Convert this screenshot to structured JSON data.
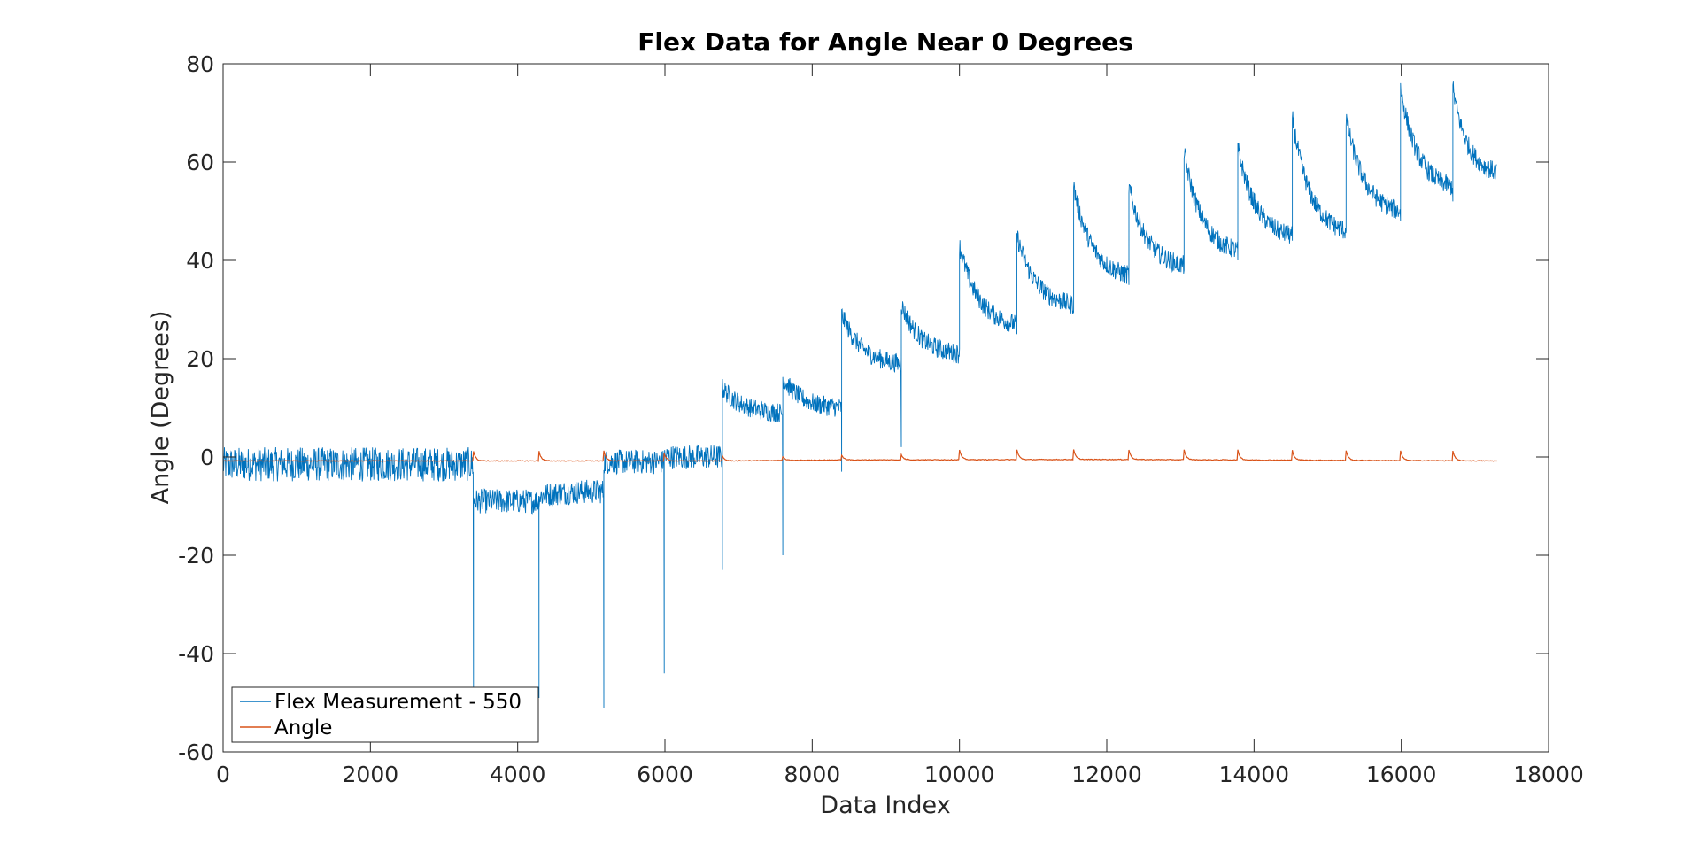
{
  "colors": {
    "flex": "#0072BD",
    "angle": "#D95319",
    "axis": "#262626",
    "background": "#ffffff"
  },
  "chart_data": {
    "type": "line",
    "title": "Flex Data for Angle Near 0 Degrees",
    "xlabel": "Data Index",
    "ylabel": "Angle (Degrees)",
    "xlim": [
      0,
      18000
    ],
    "ylim": [
      -60,
      80
    ],
    "xticks": [
      0,
      2000,
      4000,
      6000,
      8000,
      10000,
      12000,
      14000,
      16000,
      18000
    ],
    "xtick_labels": [
      "0",
      "2000",
      "4000",
      "6000",
      "8000",
      "10000",
      "12000",
      "14000",
      "16000",
      "18000"
    ],
    "yticks": [
      -60,
      -40,
      -20,
      0,
      20,
      40,
      60,
      80
    ],
    "ytick_labels": [
      "-60",
      "-40",
      "-20",
      "0",
      "20",
      "40",
      "60",
      "80"
    ],
    "grid": false,
    "legend_position": "bottom-left",
    "series": [
      {
        "name": "Flex Measurement - 550",
        "color": "#0072BD",
        "segments": [
          {
            "x_start": 0,
            "x_end": 3400,
            "y_start": -1.5,
            "y_end": -1.5,
            "noise": 3.5
          },
          {
            "x_start": 3400,
            "x_end": 4290,
            "y_start": -9,
            "y_end": -9,
            "noise": 2.5,
            "spike": -47
          },
          {
            "x_start": 4290,
            "x_end": 5170,
            "y_start": -8,
            "y_end": -7,
            "noise": 2.5,
            "spike": -49
          },
          {
            "x_start": 5170,
            "x_end": 5990,
            "y_start": -1,
            "y_end": -1,
            "noise": 2.5,
            "spike": -51
          },
          {
            "x_start": 5990,
            "x_end": 6780,
            "y_start": 0,
            "y_end": 0,
            "noise": 2.5,
            "spike": -44
          },
          {
            "x_start": 6780,
            "x_end": 7600,
            "y_start": 14,
            "y_end": 9,
            "noise": 2,
            "spike": -23
          },
          {
            "x_start": 7600,
            "x_end": 8400,
            "y_start": 16,
            "y_end": 10,
            "noise": 2,
            "spike": -20
          },
          {
            "x_start": 8400,
            "x_end": 9210,
            "y_start": 29,
            "y_end": 19,
            "noise": 2,
            "spike": -3
          },
          {
            "x_start": 9210,
            "x_end": 10000,
            "y_start": 31,
            "y_end": 21,
            "noise": 2,
            "spike": 2
          },
          {
            "x_start": 10000,
            "x_end": 10780,
            "y_start": 43,
            "y_end": 27,
            "noise": 2,
            "spike": 22
          },
          {
            "x_start": 10780,
            "x_end": 11550,
            "y_start": 45,
            "y_end": 31,
            "noise": 2,
            "spike": 25
          },
          {
            "x_start": 11550,
            "x_end": 12300,
            "y_start": 55,
            "y_end": 37,
            "noise": 2,
            "spike": 30
          },
          {
            "x_start": 12300,
            "x_end": 13050,
            "y_start": 55,
            "y_end": 39,
            "noise": 2,
            "spike": 35
          },
          {
            "x_start": 13050,
            "x_end": 13780,
            "y_start": 62,
            "y_end": 42,
            "noise": 2,
            "spike": 38
          },
          {
            "x_start": 13780,
            "x_end": 14520,
            "y_start": 63,
            "y_end": 45,
            "noise": 2,
            "spike": 40
          },
          {
            "x_start": 14520,
            "x_end": 15250,
            "y_start": 69,
            "y_end": 46,
            "noise": 2,
            "spike": 44
          },
          {
            "x_start": 15250,
            "x_end": 15990,
            "y_start": 69,
            "y_end": 50,
            "noise": 2,
            "spike": 46
          },
          {
            "x_start": 15990,
            "x_end": 16700,
            "y_start": 75,
            "y_end": 55,
            "noise": 2,
            "spike": 48
          },
          {
            "x_start": 16700,
            "x_end": 17300,
            "y_start": 75,
            "y_end": 58,
            "noise": 2,
            "spike": 52
          }
        ]
      },
      {
        "name": "Angle",
        "color": "#D95319",
        "baseline": [
          [
            0,
            -0.8
          ],
          [
            3400,
            -0.8
          ],
          [
            6780,
            -0.8
          ],
          [
            8400,
            -0.6
          ],
          [
            12000,
            -0.5
          ],
          [
            17300,
            -0.8
          ]
        ],
        "peaks_x": [
          3400,
          4290,
          5170,
          5990,
          6780,
          7600,
          8400,
          9210,
          10000,
          10780,
          11550,
          12300,
          13050,
          13780,
          14520,
          15250,
          15990,
          16700
        ],
        "peak_heights": [
          2,
          2,
          2,
          1.5,
          1,
          0.8,
          1,
          1,
          2,
          2,
          2,
          2,
          2,
          2,
          2,
          2,
          2,
          2
        ]
      }
    ]
  }
}
